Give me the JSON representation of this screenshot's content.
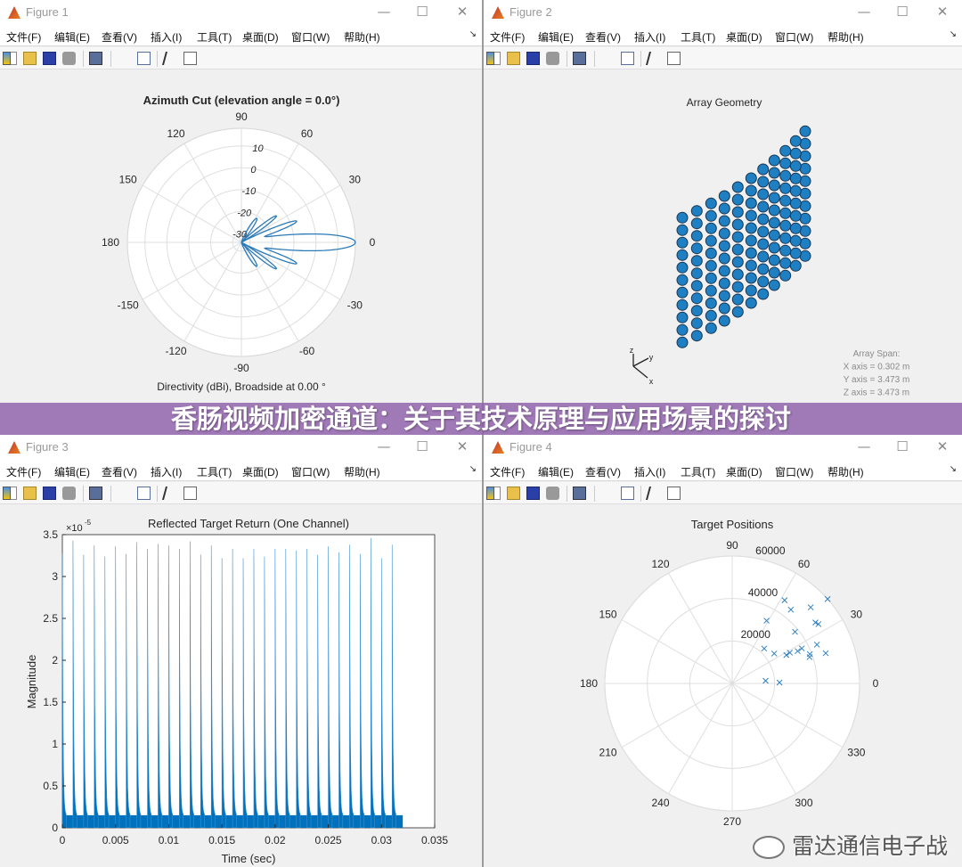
{
  "banner": {
    "title": "香肠视频加密通道：关于其技术原理与应用场景的探讨"
  },
  "menu": [
    "文件(F)",
    "编辑(E)",
    "查看(V)",
    "插入(I)",
    "工具(T)",
    "桌面(D)",
    "窗口(W)",
    "帮助(H)"
  ],
  "toolbar_icons": [
    "new-figure-icon",
    "open-file-icon",
    "save-icon",
    "print-icon",
    "link-plot-icon",
    "colorbar-icon",
    "legend-icon",
    "pointer-icon",
    "property-editor-icon"
  ],
  "window_controls": {
    "minimize": "—",
    "maximize": "☐",
    "close": "✕"
  },
  "figures": [
    {
      "title": "Figure 1"
    },
    {
      "title": "Figure 2"
    },
    {
      "title": "Figure 3"
    },
    {
      "title": "Figure 4"
    }
  ],
  "watermark": {
    "text": "雷达通信电子战"
  },
  "colors": {
    "series": "#0072bd",
    "grid": "#dcdcdc",
    "banner": "#8e5eaa"
  },
  "chart_data": [
    {
      "type": "polar-line",
      "title": "Azimuth Cut (elevation angle = 0.0°)",
      "subtitle": "Directivity (dBi), Broadside at 0.00 °",
      "angle_ticks": [
        "0",
        "30",
        "60",
        "90",
        "120",
        "150",
        "180",
        "-150",
        "-120",
        "-90",
        "-60",
        "-30"
      ],
      "r_ticks": [
        "-30",
        "-20",
        "-10",
        "0",
        "10"
      ],
      "rlim": [
        -34,
        18
      ],
      "angle_deg": [
        -90,
        -72,
        -57,
        -46,
        -37,
        -29,
        -21,
        -14,
        0,
        14,
        21,
        29,
        37,
        46,
        57,
        72,
        90
      ],
      "directivity_dBi": [
        -34,
        -34,
        -21,
        -34,
        -14,
        -34,
        -7,
        -23,
        18,
        -23,
        -7,
        -34,
        -14,
        -34,
        -21,
        -34,
        -34
      ]
    },
    {
      "type": "scatter3d",
      "title": "Array Geometry",
      "axes": [
        "z",
        "y",
        "x"
      ],
      "annotation": [
        "Array Span:",
        "X axis = 0.302 m",
        "Y axis = 3.473 m",
        "Z axis = 3.473 m"
      ]
    },
    {
      "type": "line",
      "title": "Reflected Target Return (One Channel)",
      "xlabel": "Time (sec)",
      "ylabel": "Magnitude",
      "y_exponent": "×10",
      "y_exponent_power": "-5",
      "xlim": [
        0,
        0.035
      ],
      "ylim": [
        0,
        3.5
      ],
      "x_ticks": [
        "0",
        "0.005",
        "0.01",
        "0.015",
        "0.02",
        "0.025",
        "0.03",
        "0.035"
      ],
      "y_ticks": [
        "0",
        "0.5",
        "1",
        "1.5",
        "2",
        "2.5",
        "3",
        "3.5"
      ],
      "pulse_times": [
        0,
        0.001,
        0.002,
        0.003,
        0.004,
        0.005,
        0.006,
        0.007,
        0.008,
        0.009,
        0.01,
        0.011,
        0.012,
        0.013,
        0.014,
        0.015,
        0.016,
        0.017,
        0.018,
        0.019,
        0.02,
        0.021,
        0.022,
        0.023,
        0.024,
        0.025,
        0.026,
        0.027,
        0.028,
        0.029,
        0.03,
        0.031
      ],
      "pulse_peaks": [
        3.28,
        3.43,
        3.26,
        3.37,
        3.24,
        3.36,
        3.27,
        3.41,
        3.33,
        3.39,
        3.37,
        3.33,
        3.42,
        3.26,
        3.37,
        3.22,
        3.33,
        3.22,
        3.33,
        3.24,
        3.33,
        3.33,
        3.31,
        3.33,
        3.26,
        3.36,
        3.29,
        3.38,
        3.27,
        3.46,
        3.22,
        3.38
      ],
      "noise_floor": 0.15,
      "signal_end": 0.032
    },
    {
      "type": "polar-scatter",
      "title": "Target Positions",
      "angle_ticks": [
        "0",
        "30",
        "60",
        "90",
        "120",
        "150",
        "180",
        "210",
        "240",
        "270",
        "300",
        "330"
      ],
      "r_ticks": [
        "20000",
        "40000",
        "60000"
      ],
      "rlim": [
        0,
        60000
      ],
      "marker": "x",
      "points": [
        {
          "angle": 57.8,
          "range": 46300
        },
        {
          "angle": 51.5,
          "range": 44400
        },
        {
          "angle": 44.1,
          "range": 51500
        },
        {
          "angle": 41.5,
          "range": 60000
        },
        {
          "angle": 61.3,
          "range": 33700
        },
        {
          "angle": 36.2,
          "range": 48600
        },
        {
          "angle": 34.5,
          "range": 49300
        },
        {
          "angle": 39.4,
          "range": 38300
        },
        {
          "angle": 47.5,
          "range": 22300
        },
        {
          "angle": 35.4,
          "range": 24300
        },
        {
          "angle": 27.7,
          "range": 28800
        },
        {
          "angle": 28.1,
          "range": 30800
        },
        {
          "angle": 26.3,
          "range": 34400
        },
        {
          "angle": 26.7,
          "range": 36700
        },
        {
          "angle": 20.7,
          "range": 39100
        },
        {
          "angle": 18.8,
          "range": 38500
        },
        {
          "angle": 24.6,
          "range": 43900
        },
        {
          "angle": 17.9,
          "range": 46300
        },
        {
          "angle": 4.6,
          "range": 15800
        },
        {
          "angle": 1.1,
          "range": 22300
        }
      ]
    }
  ]
}
